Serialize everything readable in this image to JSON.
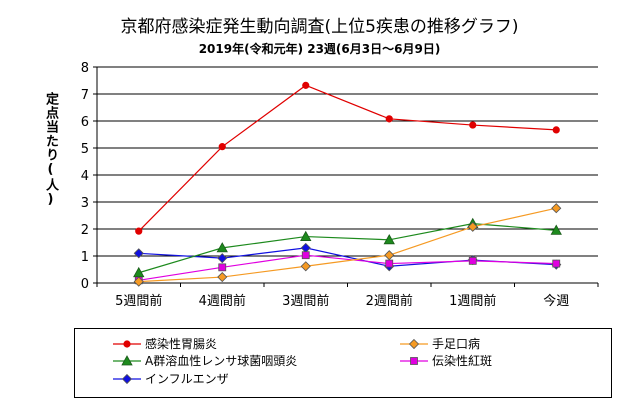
{
  "chart_data": {
    "type": "line",
    "title": "京都府感染症発生動向調査(上位5疾患の推移グラフ)",
    "subtitle": "2019年(令和元年) 23週(6月3日～6月9日)",
    "ylabel": "定点当たり(人)",
    "xlabel": "",
    "categories": [
      "5週間前",
      "4週間前",
      "3週間前",
      "2週間前",
      "1週間前",
      "今週"
    ],
    "ylim": [
      0,
      8
    ],
    "yticks": [
      "0",
      "1",
      "2",
      "3",
      "4",
      "5",
      "6",
      "7",
      "8"
    ],
    "grid": true,
    "legend_position": "bottom",
    "series": [
      {
        "name": "感染性胃腸炎",
        "color": "#e00000",
        "marker": "circle",
        "values": [
          1.92,
          5.05,
          7.32,
          6.08,
          5.85,
          5.67
        ]
      },
      {
        "name": "手足口病",
        "color": "#f59a23",
        "marker": "diamond",
        "values": [
          0.05,
          0.22,
          0.62,
          1.03,
          2.08,
          2.77
        ]
      },
      {
        "name": "A群溶血性レンサ球菌咽頭炎",
        "color": "#1d8a1d",
        "marker": "triangle",
        "values": [
          0.38,
          1.3,
          1.72,
          1.6,
          2.2,
          1.95
        ]
      },
      {
        "name": "伝染性紅斑",
        "color": "#e000e0",
        "marker": "square",
        "values": [
          0.1,
          0.58,
          1.03,
          0.72,
          0.82,
          0.72
        ]
      },
      {
        "name": "インフルエンザ",
        "color": "#1010e0",
        "marker": "diamond",
        "values": [
          1.1,
          0.92,
          1.3,
          0.62,
          0.85,
          0.68
        ]
      }
    ]
  }
}
